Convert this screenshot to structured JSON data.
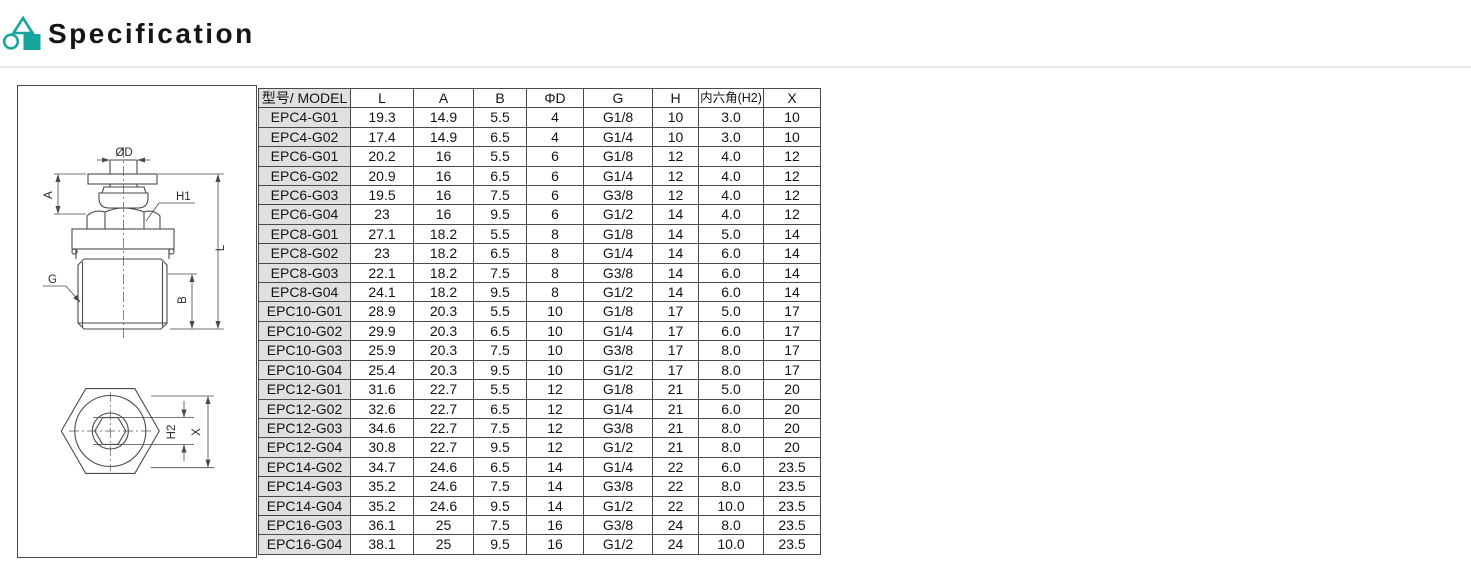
{
  "header": {
    "title": "Specification",
    "accent_color": "#17a59d"
  },
  "drawing": {
    "side_view_labels": {
      "diameter": "ØD",
      "a": "A",
      "h1": "H1",
      "g": "G",
      "b": "B",
      "l": "L"
    },
    "bottom_view_labels": {
      "h2": "H2",
      "x": "X"
    }
  },
  "table": {
    "columns": [
      "型号/ MODEL",
      "L",
      "A",
      "B",
      "ΦD",
      "G",
      "H",
      "内六角(H2)",
      "X"
    ],
    "rows": [
      [
        "EPC4-G01",
        "19.3",
        "14.9",
        "5.5",
        "4",
        "G1/8",
        "10",
        "3.0",
        "10"
      ],
      [
        "EPC4-G02",
        "17.4",
        "14.9",
        "6.5",
        "4",
        "G1/4",
        "10",
        "3.0",
        "10"
      ],
      [
        "EPC6-G01",
        "20.2",
        "16",
        "5.5",
        "6",
        "G1/8",
        "12",
        "4.0",
        "12"
      ],
      [
        "EPC6-G02",
        "20.9",
        "16",
        "6.5",
        "6",
        "G1/4",
        "12",
        "4.0",
        "12"
      ],
      [
        "EPC6-G03",
        "19.5",
        "16",
        "7.5",
        "6",
        "G3/8",
        "12",
        "4.0",
        "12"
      ],
      [
        "EPC6-G04",
        "23",
        "16",
        "9.5",
        "6",
        "G1/2",
        "14",
        "4.0",
        "12"
      ],
      [
        "EPC8-G01",
        "27.1",
        "18.2",
        "5.5",
        "8",
        "G1/8",
        "14",
        "5.0",
        "14"
      ],
      [
        "EPC8-G02",
        "23",
        "18.2",
        "6.5",
        "8",
        "G1/4",
        "14",
        "6.0",
        "14"
      ],
      [
        "EPC8-G03",
        "22.1",
        "18.2",
        "7.5",
        "8",
        "G3/8",
        "14",
        "6.0",
        "14"
      ],
      [
        "EPC8-G04",
        "24.1",
        "18.2",
        "9.5",
        "8",
        "G1/2",
        "14",
        "6.0",
        "14"
      ],
      [
        "EPC10-G01",
        "28.9",
        "20.3",
        "5.5",
        "10",
        "G1/8",
        "17",
        "5.0",
        "17"
      ],
      [
        "EPC10-G02",
        "29.9",
        "20.3",
        "6.5",
        "10",
        "G1/4",
        "17",
        "6.0",
        "17"
      ],
      [
        "EPC10-G03",
        "25.9",
        "20.3",
        "7.5",
        "10",
        "G3/8",
        "17",
        "8.0",
        "17"
      ],
      [
        "EPC10-G04",
        "25.4",
        "20.3",
        "9.5",
        "10",
        "G1/2",
        "17",
        "8.0",
        "17"
      ],
      [
        "EPC12-G01",
        "31.6",
        "22.7",
        "5.5",
        "12",
        "G1/8",
        "21",
        "5.0",
        "20"
      ],
      [
        "EPC12-G02",
        "32.6",
        "22.7",
        "6.5",
        "12",
        "G1/4",
        "21",
        "6.0",
        "20"
      ],
      [
        "EPC12-G03",
        "34.6",
        "22.7",
        "7.5",
        "12",
        "G3/8",
        "21",
        "8.0",
        "20"
      ],
      [
        "EPC12-G04",
        "30.8",
        "22.7",
        "9.5",
        "12",
        "G1/2",
        "21",
        "8.0",
        "20"
      ],
      [
        "EPC14-G02",
        "34.7",
        "24.6",
        "6.5",
        "14",
        "G1/4",
        "22",
        "6.0",
        "23.5"
      ],
      [
        "EPC14-G03",
        "35.2",
        "24.6",
        "7.5",
        "14",
        "G3/8",
        "22",
        "8.0",
        "23.5"
      ],
      [
        "EPC14-G04",
        "35.2",
        "24.6",
        "9.5",
        "14",
        "G1/2",
        "22",
        "10.0",
        "23.5"
      ],
      [
        "EPC16-G03",
        "36.1",
        "25",
        "7.5",
        "16",
        "G3/8",
        "24",
        "8.0",
        "23.5"
      ],
      [
        "EPC16-G04",
        "38.1",
        "25",
        "9.5",
        "16",
        "G1/2",
        "24",
        "10.0",
        "23.5"
      ]
    ]
  }
}
